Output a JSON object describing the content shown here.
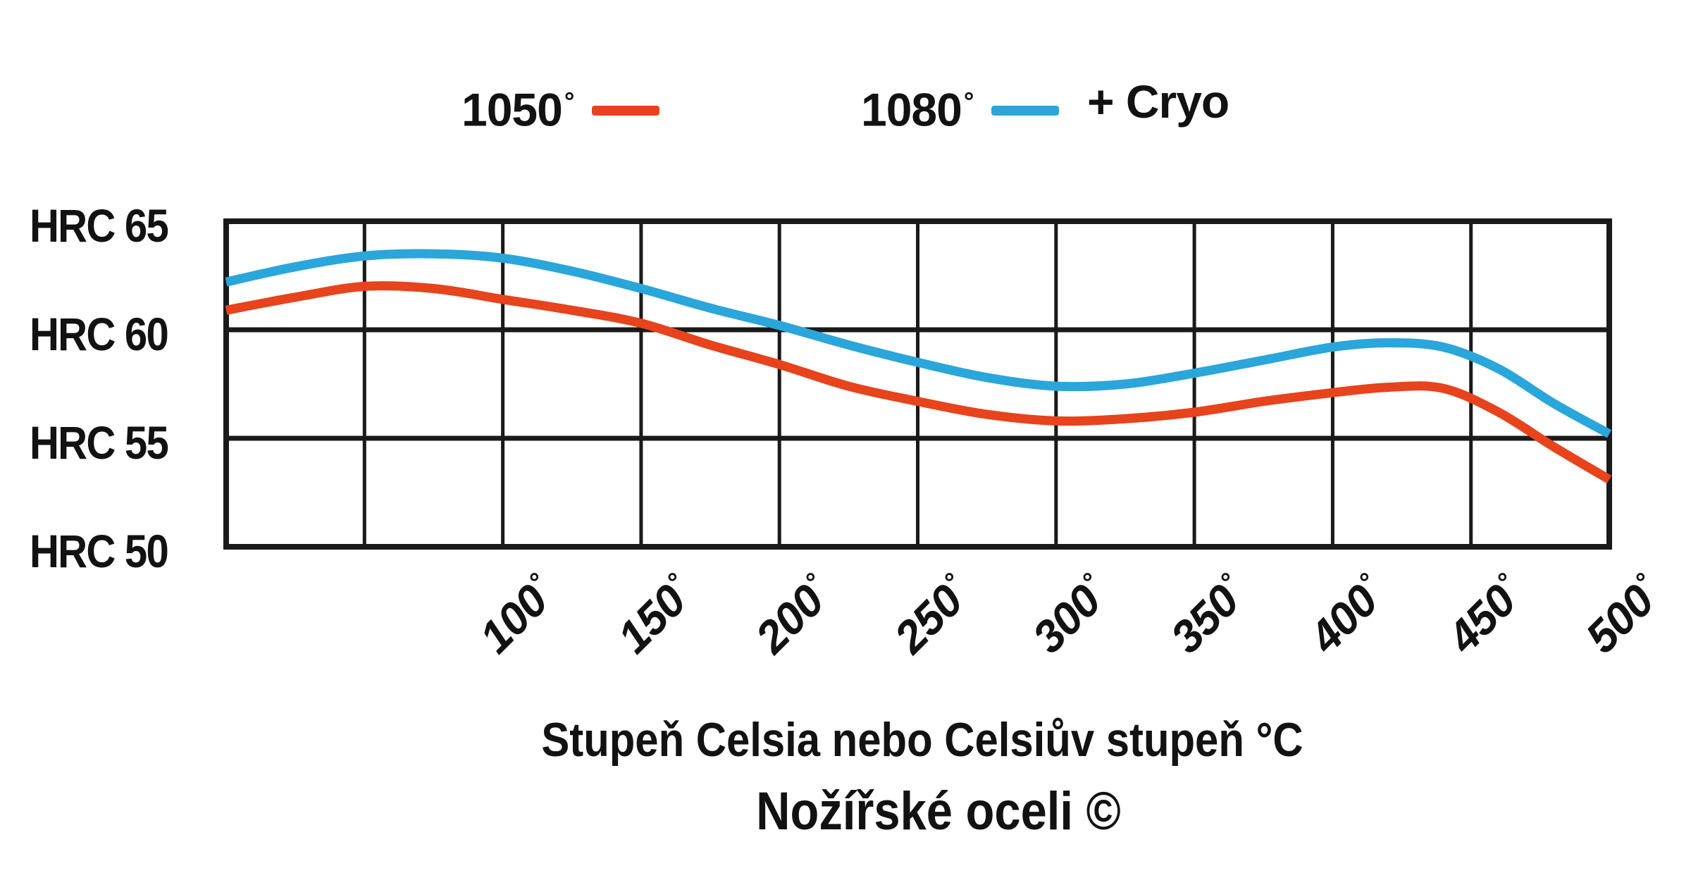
{
  "page": {
    "background": "#ffffff",
    "grid_color": "#1a1a1a",
    "text_color": "#121212"
  },
  "legend": {
    "items": [
      {
        "label": "1050",
        "degree": "°",
        "suffix": "",
        "color": "#e7431c"
      },
      {
        "label": "1080",
        "degree": "°",
        "suffix": "+ Cryo",
        "color": "#2aa6db"
      }
    ]
  },
  "y_axis": {
    "labels": [
      "HRC 65",
      "HRC 60",
      "HRC 55",
      "HRC 50"
    ]
  },
  "x_axis": {
    "degree": "°",
    "tick_labels": [
      "100",
      "150",
      "200",
      "250",
      "300",
      "350",
      "400",
      "450",
      "500"
    ]
  },
  "footer": {
    "xlabel": "Stupeň Celsia nebo Celsiův stupeň °C",
    "credit": "Nožířské oceli ©"
  },
  "chart_data": {
    "type": "line",
    "title": "",
    "xlabel": "Stupeň Celsia nebo Celsiův stupeň °C",
    "ylabel": "HRC",
    "xlim": [
      0,
      500
    ],
    "ylim": [
      50,
      65
    ],
    "x_tick_step": 50,
    "y_tick_step": 5,
    "grid": true,
    "legend_position": "top",
    "x": [
      0,
      25,
      50,
      75,
      100,
      125,
      150,
      175,
      200,
      225,
      250,
      275,
      300,
      325,
      350,
      375,
      400,
      420,
      440,
      460,
      480,
      500
    ],
    "series": [
      {
        "name": "1050°",
        "color": "#e7431c",
        "values": [
          60.9,
          61.5,
          62.0,
          61.9,
          61.4,
          60.9,
          60.3,
          59.3,
          58.4,
          57.4,
          56.7,
          56.1,
          55.8,
          55.9,
          56.2,
          56.7,
          57.1,
          57.35,
          57.3,
          56.2,
          54.6,
          53.1
        ]
      },
      {
        "name": "1080° + Cryo",
        "color": "#2aa6db",
        "values": [
          62.2,
          62.9,
          63.4,
          63.5,
          63.3,
          62.7,
          61.9,
          61.0,
          60.2,
          59.3,
          58.5,
          57.8,
          57.4,
          57.5,
          58.0,
          58.6,
          59.2,
          59.4,
          59.2,
          58.2,
          56.6,
          55.2
        ]
      }
    ]
  }
}
